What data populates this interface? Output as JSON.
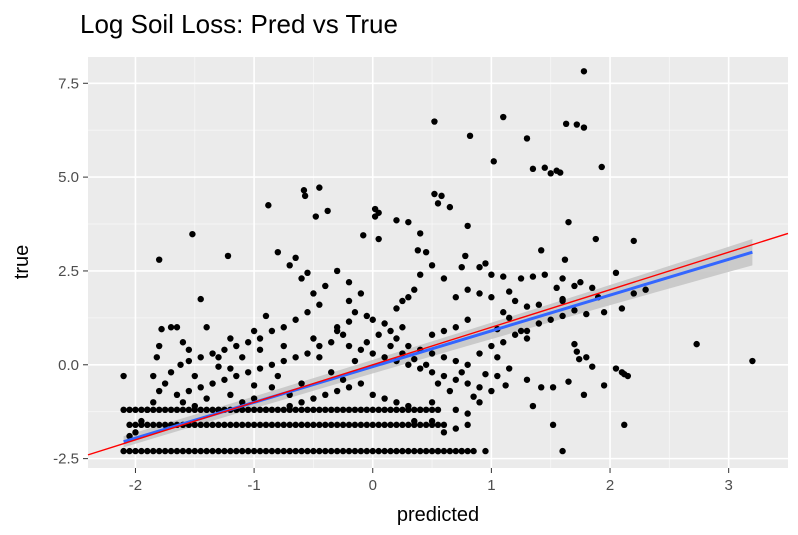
{
  "chart_data": {
    "type": "scatter",
    "title": "Log Soil Loss: Pred vs True",
    "xlabel": "predicted",
    "ylabel": "true",
    "xlim": [
      -2.4,
      3.5
    ],
    "ylim": [
      -2.75,
      8.2
    ],
    "x_ticks": [
      -2,
      -1,
      0,
      1,
      2,
      3
    ],
    "y_ticks": [
      -2.5,
      0.0,
      2.5,
      5.0,
      7.5
    ],
    "x_tick_labels": [
      "-2",
      "-1",
      "0",
      "1",
      "2",
      "3"
    ],
    "y_tick_labels": [
      "-2.5",
      "0.0",
      "2.5",
      "5.0",
      "7.5"
    ],
    "grid": true,
    "panel_background": "#ebebeb",
    "grid_color": "#ffffff",
    "point_color": "#000000",
    "fit_color": "#3366ff",
    "fit_band_color": "#c4c4c4",
    "identity_color": "#ff0000",
    "fit_line": {
      "x": [
        -2.1,
        3.2
      ],
      "y": [
        -2.05,
        3.0
      ],
      "band_halfwidth": [
        0.15,
        0.35
      ]
    },
    "identity_line": {
      "x": [
        -2.4,
        3.5
      ],
      "y": [
        -2.4,
        3.5
      ]
    },
    "points": [
      [
        1.78,
        7.82
      ],
      [
        1.1,
        6.6
      ],
      [
        0.52,
        6.48
      ],
      [
        1.72,
        6.4
      ],
      [
        1.63,
        6.42
      ],
      [
        0.82,
        6.1
      ],
      [
        1.3,
        6.03
      ],
      [
        1.78,
        6.32
      ],
      [
        1.02,
        5.42
      ],
      [
        1.35,
        5.22
      ],
      [
        1.45,
        5.25
      ],
      [
        1.5,
        5.1
      ],
      [
        1.55,
        5.17
      ],
      [
        1.58,
        5.12
      ],
      [
        1.93,
        5.27
      ],
      [
        1.65,
        3.8
      ],
      [
        0.52,
        4.55
      ],
      [
        0.58,
        4.5
      ],
      [
        0.55,
        4.3
      ],
      [
        0.65,
        4.2
      ],
      [
        0.8,
        3.7
      ],
      [
        0.78,
        2.9
      ],
      [
        0.75,
        2.6
      ],
      [
        -0.58,
        4.65
      ],
      [
        -0.57,
        4.5
      ],
      [
        -0.45,
        4.72
      ],
      [
        -0.38,
        4.1
      ],
      [
        -0.88,
        4.25
      ],
      [
        -0.48,
        3.95
      ],
      [
        0.02,
        4.15
      ],
      [
        0.05,
        4.05
      ],
      [
        0.02,
        3.95
      ],
      [
        -0.08,
        3.45
      ],
      [
        0.05,
        3.35
      ],
      [
        0.2,
        3.85
      ],
      [
        0.3,
        3.8
      ],
      [
        0.4,
        3.5
      ],
      [
        0.38,
        3.05
      ],
      [
        -1.52,
        3.48
      ],
      [
        -1.22,
        2.9
      ],
      [
        -1.8,
        2.8
      ],
      [
        -1.45,
        1.75
      ],
      [
        -1.65,
        1.0
      ],
      [
        -1.78,
        0.95
      ],
      [
        -1.8,
        0.5
      ],
      [
        -1.82,
        0.2
      ],
      [
        -0.8,
        3.0
      ],
      [
        -0.65,
        2.85
      ],
      [
        -0.7,
        2.65
      ],
      [
        -0.55,
        2.45
      ],
      [
        -0.4,
        2.1
      ],
      [
        -0.3,
        2.5
      ],
      [
        -0.2,
        2.2
      ],
      [
        -0.6,
        2.3
      ],
      [
        1.42,
        3.05
      ],
      [
        1.62,
        2.8
      ],
      [
        1.88,
        3.35
      ],
      [
        2.2,
        3.3
      ],
      [
        2.05,
        2.45
      ],
      [
        1.85,
        2.05
      ],
      [
        1.9,
        1.8
      ],
      [
        2.2,
        1.9
      ],
      [
        2.3,
        2.0
      ],
      [
        1.25,
        2.3
      ],
      [
        1.35,
        2.35
      ],
      [
        1.45,
        2.4
      ],
      [
        1.6,
        2.3
      ],
      [
        1.7,
        2.1
      ],
      [
        1.55,
        2.05
      ],
      [
        1.75,
        2.2
      ],
      [
        1.6,
        1.75
      ],
      [
        1.95,
        1.4
      ],
      [
        2.1,
        1.5
      ],
      [
        1.7,
        1.45
      ],
      [
        1.8,
        1.35
      ],
      [
        1.6,
        1.7
      ],
      [
        1.4,
        1.6
      ],
      [
        1.3,
        1.55
      ],
      [
        1.1,
        1.4
      ],
      [
        1.2,
        1.7
      ],
      [
        0.9,
        2.6
      ],
      [
        0.95,
        2.7
      ],
      [
        1.0,
        2.4
      ],
      [
        1.1,
        2.35
      ],
      [
        1.15,
        1.95
      ],
      [
        1.0,
        1.8
      ],
      [
        0.9,
        1.9
      ],
      [
        0.8,
        2.0
      ],
      [
        0.7,
        1.8
      ],
      [
        0.6,
        2.3
      ],
      [
        0.5,
        2.65
      ],
      [
        0.45,
        3.0
      ],
      [
        0.4,
        2.4
      ],
      [
        0.35,
        2.0
      ],
      [
        0.3,
        1.8
      ],
      [
        0.25,
        1.7
      ],
      [
        0.2,
        1.5
      ],
      [
        -0.1,
        1.9
      ],
      [
        -0.2,
        1.7
      ],
      [
        -0.15,
        1.4
      ],
      [
        -0.05,
        1.3
      ],
      [
        0.0,
        1.2
      ],
      [
        0.1,
        1.1
      ],
      [
        0.15,
        0.9
      ],
      [
        0.25,
        1.0
      ],
      [
        -0.5,
        1.9
      ],
      [
        -0.45,
        1.6
      ],
      [
        -0.55,
        1.4
      ],
      [
        -0.65,
        1.2
      ],
      [
        -0.75,
        1.0
      ],
      [
        -0.85,
        0.9
      ],
      [
        -0.95,
        0.7
      ],
      [
        -1.05,
        0.6
      ],
      [
        -1.15,
        0.5
      ],
      [
        -1.25,
        0.4
      ],
      [
        -1.35,
        0.3
      ],
      [
        -1.45,
        0.2
      ],
      [
        -1.55,
        0.1
      ],
      [
        -1.62,
        0.0
      ],
      [
        -1.7,
        -0.2
      ],
      [
        -1.75,
        -0.5
      ],
      [
        -1.8,
        -0.7
      ],
      [
        -1.85,
        -1.0
      ],
      [
        -1.9,
        -1.2
      ],
      [
        -1.95,
        -1.5
      ],
      [
        -2.0,
        -1.8
      ],
      [
        -2.05,
        -1.9
      ],
      [
        -2.1,
        -0.3
      ],
      [
        -0.3,
        1.0
      ],
      [
        -0.25,
        0.8
      ],
      [
        -0.35,
        0.6
      ],
      [
        -0.45,
        0.5
      ],
      [
        -0.55,
        0.3
      ],
      [
        -0.65,
        0.2
      ],
      [
        -0.75,
        0.1
      ],
      [
        -0.85,
        0.0
      ],
      [
        -0.95,
        -0.1
      ],
      [
        -1.05,
        -0.2
      ],
      [
        -1.15,
        -0.3
      ],
      [
        -1.25,
        -0.4
      ],
      [
        -1.35,
        -0.5
      ],
      [
        -1.45,
        -0.6
      ],
      [
        -1.55,
        -0.7
      ],
      [
        -1.65,
        -0.8
      ],
      [
        -0.2,
        0.5
      ],
      [
        -0.1,
        0.4
      ],
      [
        0.0,
        0.3
      ],
      [
        0.1,
        0.2
      ],
      [
        0.2,
        0.1
      ],
      [
        0.3,
        0.0
      ],
      [
        0.4,
        -0.1
      ],
      [
        0.5,
        -0.2
      ],
      [
        0.6,
        -0.3
      ],
      [
        0.7,
        -0.4
      ],
      [
        0.8,
        -0.5
      ],
      [
        0.9,
        -0.6
      ],
      [
        1.0,
        -0.7
      ],
      [
        0.2,
        0.7
      ],
      [
        0.3,
        0.5
      ],
      [
        0.4,
        0.4
      ],
      [
        0.5,
        0.3
      ],
      [
        0.6,
        0.2
      ],
      [
        0.7,
        0.1
      ],
      [
        0.8,
        0.0
      ],
      [
        0.9,
        0.3
      ],
      [
        1.0,
        0.5
      ],
      [
        1.1,
        0.6
      ],
      [
        1.2,
        0.8
      ],
      [
        1.3,
        0.9
      ],
      [
        1.4,
        1.1
      ],
      [
        1.5,
        1.2
      ],
      [
        1.6,
        1.3
      ],
      [
        0.8,
        1.2
      ],
      [
        0.7,
        1.0
      ],
      [
        0.6,
        0.9
      ],
      [
        0.5,
        0.8
      ],
      [
        -0.1,
        -0.5
      ],
      [
        -0.2,
        -0.6
      ],
      [
        -0.3,
        -0.7
      ],
      [
        -0.4,
        -0.8
      ],
      [
        -0.5,
        -0.9
      ],
      [
        -0.6,
        -1.0
      ],
      [
        -0.7,
        -1.1
      ],
      [
        0.0,
        -0.8
      ],
      [
        0.1,
        -0.9
      ],
      [
        0.2,
        -1.0
      ],
      [
        0.3,
        -1.1
      ],
      [
        1.25,
        0.9
      ],
      [
        1.3,
        0.7
      ],
      [
        1.05,
        0.2
      ],
      [
        1.15,
        -0.1
      ],
      [
        1.05,
        -0.3
      ],
      [
        1.12,
        -0.55
      ],
      [
        1.3,
        -0.4
      ],
      [
        1.35,
        -1.1
      ],
      [
        1.42,
        -0.6
      ],
      [
        1.52,
        -0.6
      ],
      [
        1.65,
        -0.45
      ],
      [
        1.7,
        0.55
      ],
      [
        1.72,
        0.35
      ],
      [
        1.74,
        0.15
      ],
      [
        1.8,
        0.2
      ],
      [
        1.85,
        -0.05
      ],
      [
        1.78,
        -0.8
      ],
      [
        1.95,
        -0.55
      ],
      [
        2.1,
        -0.2
      ],
      [
        2.12,
        -0.25
      ],
      [
        2.15,
        -0.3
      ],
      [
        2.05,
        -0.1
      ],
      [
        1.52,
        -1.6
      ],
      [
        2.12,
        -1.6
      ],
      [
        1.6,
        -2.3
      ],
      [
        2.73,
        0.55
      ],
      [
        3.2,
        0.1
      ],
      [
        0.95,
        -2.3
      ],
      [
        0.75,
        -2.3
      ],
      [
        0.55,
        -2.3
      ],
      [
        0.7,
        -1.7
      ],
      [
        0.8,
        -1.6
      ],
      [
        0.5,
        -1.5
      ],
      [
        0.6,
        -1.8
      ],
      [
        0.7,
        -1.2
      ],
      [
        0.8,
        -1.3
      ],
      [
        0.9,
        -1.0
      ],
      [
        0.5,
        -1.0
      ],
      [
        0.4,
        -1.2
      ],
      [
        0.35,
        -1.5
      ],
      [
        -1.7,
        1.0
      ],
      [
        -1.4,
        1.0
      ],
      [
        -1.0,
        0.9
      ],
      [
        -0.9,
        1.3
      ],
      [
        -0.75,
        0.5
      ],
      [
        -1.2,
        0.7
      ],
      [
        -1.3,
        0.2
      ],
      [
        -1.5,
        -0.3
      ],
      [
        -1.2,
        -0.1
      ],
      [
        -1.1,
        0.2
      ],
      [
        -0.95,
        0.4
      ],
      [
        -0.8,
        -0.3
      ],
      [
        -0.85,
        -0.6
      ],
      [
        -0.7,
        -0.8
      ],
      [
        -0.6,
        -0.5
      ],
      [
        -0.45,
        0.2
      ],
      [
        -0.35,
        -0.2
      ],
      [
        -0.25,
        -0.4
      ],
      [
        -0.15,
        0.1
      ],
      [
        -0.05,
        0.6
      ],
      [
        0.05,
        0.8
      ],
      [
        0.15,
        0.5
      ],
      [
        0.25,
        0.3
      ],
      [
        0.35,
        0.15
      ],
      [
        0.45,
        0.0
      ],
      [
        0.55,
        -0.5
      ],
      [
        0.65,
        -0.7
      ],
      [
        0.75,
        -0.2
      ],
      [
        0.85,
        -0.85
      ],
      [
        0.95,
        -0.25
      ],
      [
        1.05,
        0.95
      ],
      [
        1.15,
        1.25
      ],
      [
        -1.6,
        -1.0
      ],
      [
        -1.5,
        -1.1
      ],
      [
        -1.4,
        -0.9
      ],
      [
        -1.3,
        -1.2
      ],
      [
        -1.2,
        -0.8
      ],
      [
        -1.1,
        -1.0
      ],
      [
        -1.0,
        -0.9
      ],
      [
        -0.9,
        -1.2
      ],
      [
        -1.85,
        -0.3
      ],
      [
        -1.55,
        0.4
      ],
      [
        -1.6,
        0.6
      ],
      [
        -1.3,
        -0.05
      ],
      [
        -1.0,
        -0.55
      ],
      [
        -0.5,
        0.7
      ],
      [
        -0.3,
        0.9
      ],
      [
        -0.2,
        1.15
      ]
    ],
    "floor_rows": [
      {
        "y": -2.3,
        "x_from": -2.1,
        "x_to": 0.85,
        "step": 0.05
      },
      {
        "y": -1.6,
        "x_from": -2.05,
        "x_to": 0.6,
        "step": 0.05
      },
      {
        "y": -1.2,
        "x_from": -2.1,
        "x_to": 0.55,
        "step": 0.05
      }
    ]
  }
}
